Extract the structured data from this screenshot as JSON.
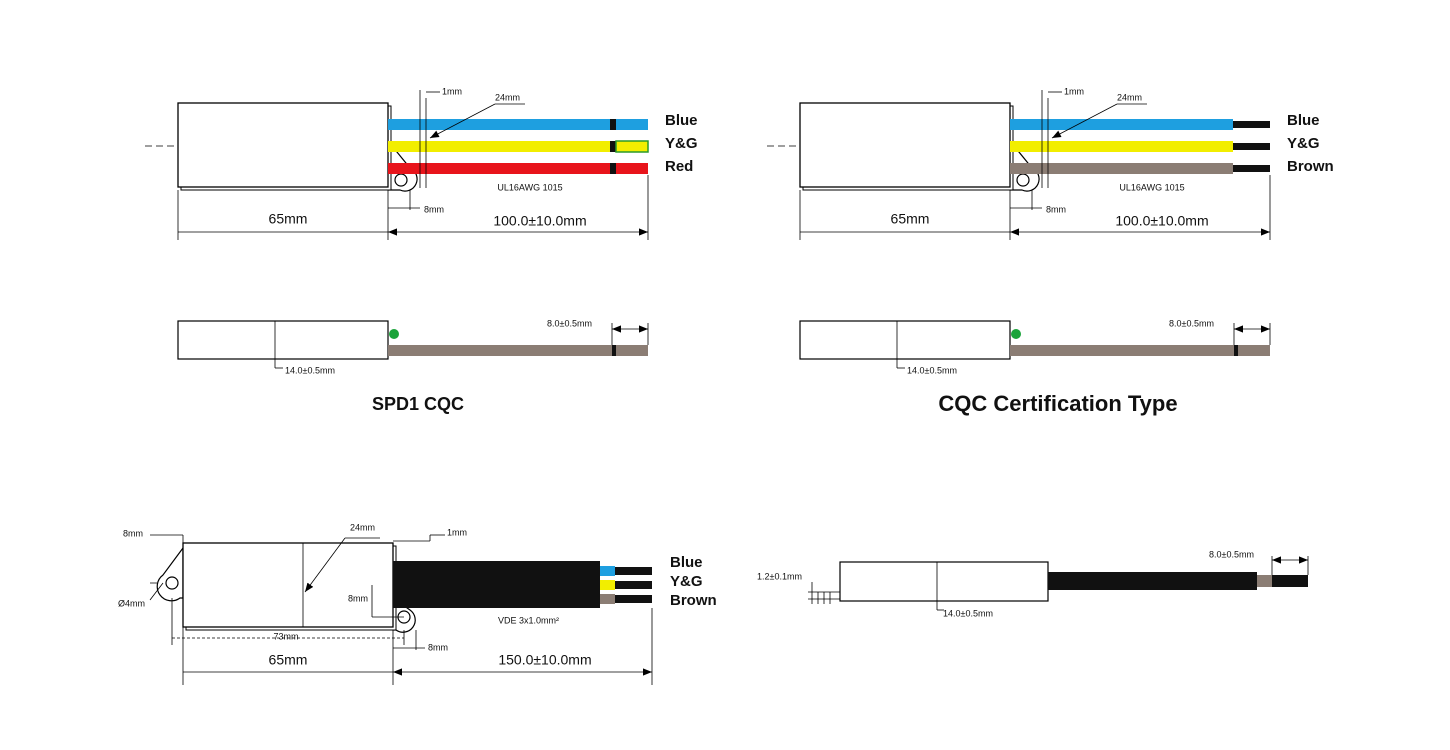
{
  "panels": [
    {
      "dim_top": "1mm",
      "dim_diag": "24mm",
      "wires": [
        "Blue",
        "Y&G",
        "Red"
      ],
      "cable": "UL16AWG 1015",
      "dim_tab": "8mm",
      "length_body": "65mm",
      "length_lead": "100.0±10.0mm",
      "side_strip": "8.0±0.5mm",
      "side_height": "14.0±0.5mm",
      "caption": "SPD1 CQC"
    },
    {
      "dim_top": "1mm",
      "dim_diag": "24mm",
      "wires": [
        "Blue",
        "Y&G",
        "Brown"
      ],
      "cable": "UL16AWG 1015",
      "dim_tab": "8mm",
      "length_body": "65mm",
      "length_lead": "100.0±10.0mm",
      "side_strip": "8.0±0.5mm",
      "side_height": "14.0±0.5mm",
      "caption": "CQC Certification Type"
    },
    {
      "dim_tab_top": "8mm",
      "dim_diag": "24mm",
      "dim_top": "1mm",
      "hole": "Ø4mm",
      "dim_mid": "8mm",
      "dim_hole_span": "73mm",
      "dim_tab": "8mm",
      "length_body": "65mm",
      "length_lead": "150.0±10.0mm",
      "cable": "VDE 3x1.0mm²",
      "wires": [
        "Blue",
        "Y&G",
        "Brown"
      ]
    },
    {
      "dim_thickness": "1.2±0.1mm",
      "side_strip": "8.0±0.5mm",
      "side_height": "14.0±0.5mm"
    }
  ]
}
